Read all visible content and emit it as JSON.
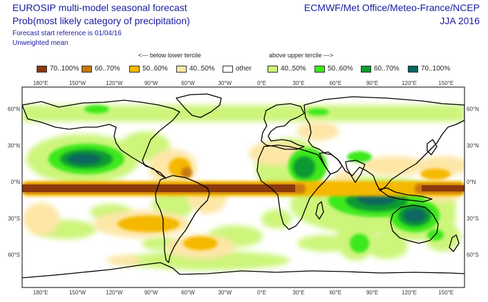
{
  "header": {
    "title": "EUROSIP multi-model seasonal forecast",
    "subtitle": "Prob(most likely category of precipitation)",
    "start_reference": "Forecast start reference is 01/04/16",
    "weighting": "Unweighted mean",
    "source": "ECMWF/Met Office/Meteo-France/NCEP",
    "period": "JJA 2016"
  },
  "legend": {
    "below_header": "<--- below lower tercile",
    "above_header": "above upper tercile --->",
    "items": [
      {
        "label": "70..100%",
        "color": "#8b3a0e"
      },
      {
        "label": "60..70%",
        "color": "#c8780a"
      },
      {
        "label": "50..60%",
        "color": "#f5b800"
      },
      {
        "label": "40..50%",
        "color": "#fde6a6"
      },
      {
        "label": "other",
        "color": "#ffffff"
      },
      {
        "label": "40..50%",
        "color": "#ccf57a"
      },
      {
        "label": "50..60%",
        "color": "#3de81a"
      },
      {
        "label": "60..70%",
        "color": "#0e9a30"
      },
      {
        "label": "70..100%",
        "color": "#07665e"
      }
    ]
  },
  "map": {
    "lon_labels": [
      "180°E",
      "150°W",
      "120°W",
      "90°W",
      "60°W",
      "30°W",
      "0°E",
      "30°E",
      "60°E",
      "90°E",
      "120°E",
      "150°E"
    ],
    "lat_labels": [
      "60°N",
      "30°N",
      "0°N",
      "30°S",
      "60°S"
    ]
  }
}
